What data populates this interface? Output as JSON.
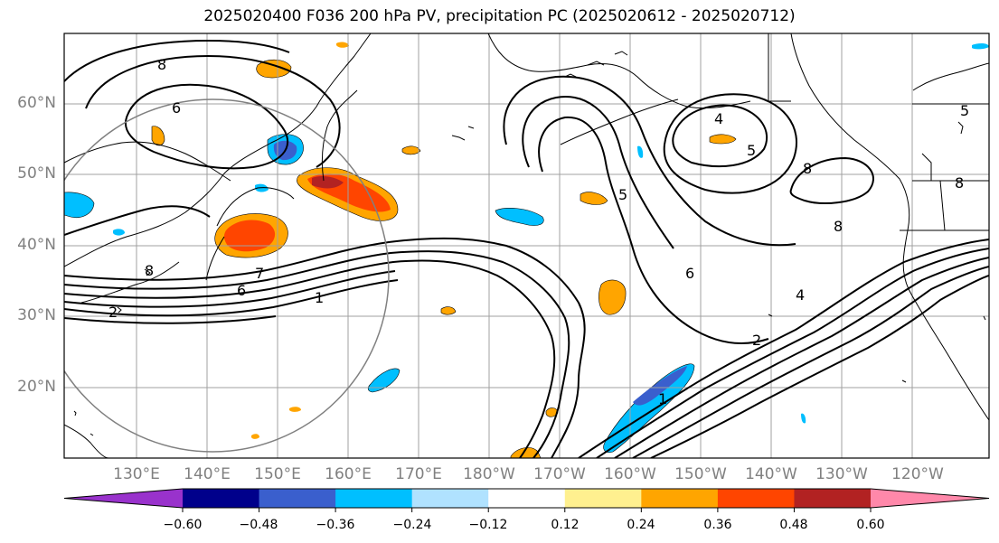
{
  "title": "2025020400 F036 200 hPa PV, precipitation PC (2025020612 - 2025020712)",
  "lat_labels": [
    "60°N",
    "50°N",
    "40°N",
    "30°N",
    "20°N"
  ],
  "lon_labels": [
    "130°E",
    "140°E",
    "150°E",
    "160°E",
    "170°E",
    "180°W",
    "170°W",
    "160°W",
    "150°W",
    "140°W",
    "130°W",
    "120°W"
  ],
  "colorbar": {
    "colors": [
      "#9932cc",
      "#00008b",
      "#3a5fcd",
      "#00bfff",
      "#b0e2ff",
      "#ffffff",
      "#fff08f",
      "#ffa500",
      "#ff4500",
      "#b22222",
      "#ff88aa"
    ],
    "ticks": [
      "−0.60",
      "−0.48",
      "−0.36",
      "−0.24",
      "−0.12",
      "0.12",
      "0.24",
      "0.36",
      "0.48",
      "0.60"
    ]
  },
  "contour_labels": [
    "8",
    "6",
    "8",
    "7",
    "6",
    "2",
    "1",
    "4",
    "5",
    "5",
    "8",
    "8",
    "6",
    "2",
    "1",
    "4",
    "8",
    "5"
  ]
}
